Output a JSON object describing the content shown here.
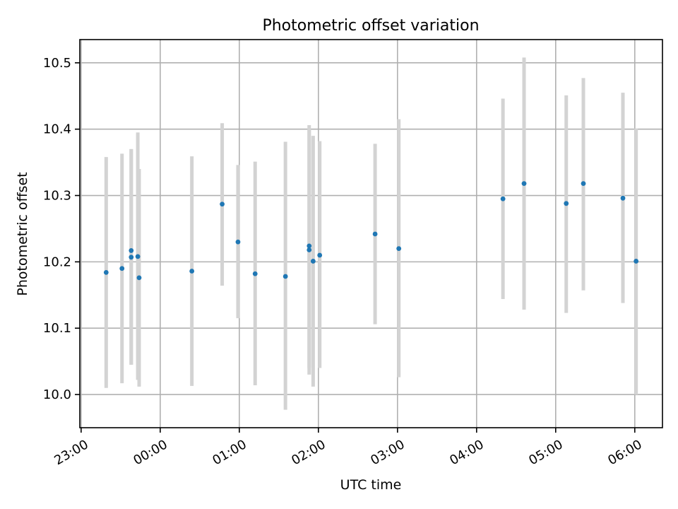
{
  "chart_data": {
    "type": "scatter",
    "title": "Photometric offset variation",
    "xlabel": "UTC time",
    "ylabel": "Photometric offset",
    "xlim": [
      "22:59",
      "06:21"
    ],
    "ylim": [
      9.95,
      10.535
    ],
    "grid": true,
    "x_ticks": [
      "23:00",
      "00:00",
      "01:00",
      "02:00",
      "03:00",
      "04:00",
      "05:00",
      "06:00"
    ],
    "y_ticks": [
      10.0,
      10.1,
      10.2,
      10.3,
      10.4,
      10.5
    ],
    "y_tick_labels": [
      "10.0",
      "10.1",
      "10.2",
      "10.3",
      "10.4",
      "10.5"
    ],
    "colors": {
      "point": "#1f77b4",
      "error_bar": "#d3d3d3",
      "grid": "#b0b0b0"
    },
    "series": [
      {
        "points": [
          {
            "x": "23:19",
            "y": 10.184,
            "err_low": 10.01,
            "err_high": 10.358
          },
          {
            "x": "23:31",
            "y": 10.19,
            "err_low": 10.017,
            "err_high": 10.363
          },
          {
            "x": "23:38",
            "y": 10.217,
            "err_low": 10.045,
            "err_high": 10.37
          },
          {
            "x": "23:38",
            "y": 10.207,
            "err_low": 10.045,
            "err_high": 10.37
          },
          {
            "x": "23:43",
            "y": 10.208,
            "err_low": 10.022,
            "err_high": 10.395
          },
          {
            "x": "23:44",
            "y": 10.176,
            "err_low": 10.012,
            "err_high": 10.34
          },
          {
            "x": "00:24",
            "y": 10.186,
            "err_low": 10.013,
            "err_high": 10.359
          },
          {
            "x": "00:47",
            "y": 10.287,
            "err_low": 10.164,
            "err_high": 10.409
          },
          {
            "x": "00:59",
            "y": 10.23,
            "err_low": 10.115,
            "err_high": 10.346
          },
          {
            "x": "01:12",
            "y": 10.182,
            "err_low": 10.014,
            "err_high": 10.351
          },
          {
            "x": "01:35",
            "y": 10.178,
            "err_low": 9.977,
            "err_high": 10.381
          },
          {
            "x": "01:53",
            "y": 10.224,
            "err_low": 10.03,
            "err_high": 10.406
          },
          {
            "x": "01:53",
            "y": 10.218,
            "err_low": 10.04,
            "err_high": 10.4
          },
          {
            "x": "01:56",
            "y": 10.201,
            "err_low": 10.012,
            "err_high": 10.39
          },
          {
            "x": "02:01",
            "y": 10.21,
            "err_low": 10.04,
            "err_high": 10.382
          },
          {
            "x": "02:43",
            "y": 10.242,
            "err_low": 10.106,
            "err_high": 10.378
          },
          {
            "x": "03:01",
            "y": 10.22,
            "err_low": 10.026,
            "err_high": 10.415
          },
          {
            "x": "04:20",
            "y": 10.295,
            "err_low": 10.144,
            "err_high": 10.446
          },
          {
            "x": "04:36",
            "y": 10.318,
            "err_low": 10.128,
            "err_high": 10.508
          },
          {
            "x": "05:08",
            "y": 10.288,
            "err_low": 10.123,
            "err_high": 10.451
          },
          {
            "x": "05:21",
            "y": 10.318,
            "err_low": 10.157,
            "err_high": 10.477
          },
          {
            "x": "05:51",
            "y": 10.296,
            "err_low": 10.138,
            "err_high": 10.455
          },
          {
            "x": "06:01",
            "y": 10.201,
            "err_low": 10.0,
            "err_high": 10.401
          }
        ]
      }
    ]
  }
}
